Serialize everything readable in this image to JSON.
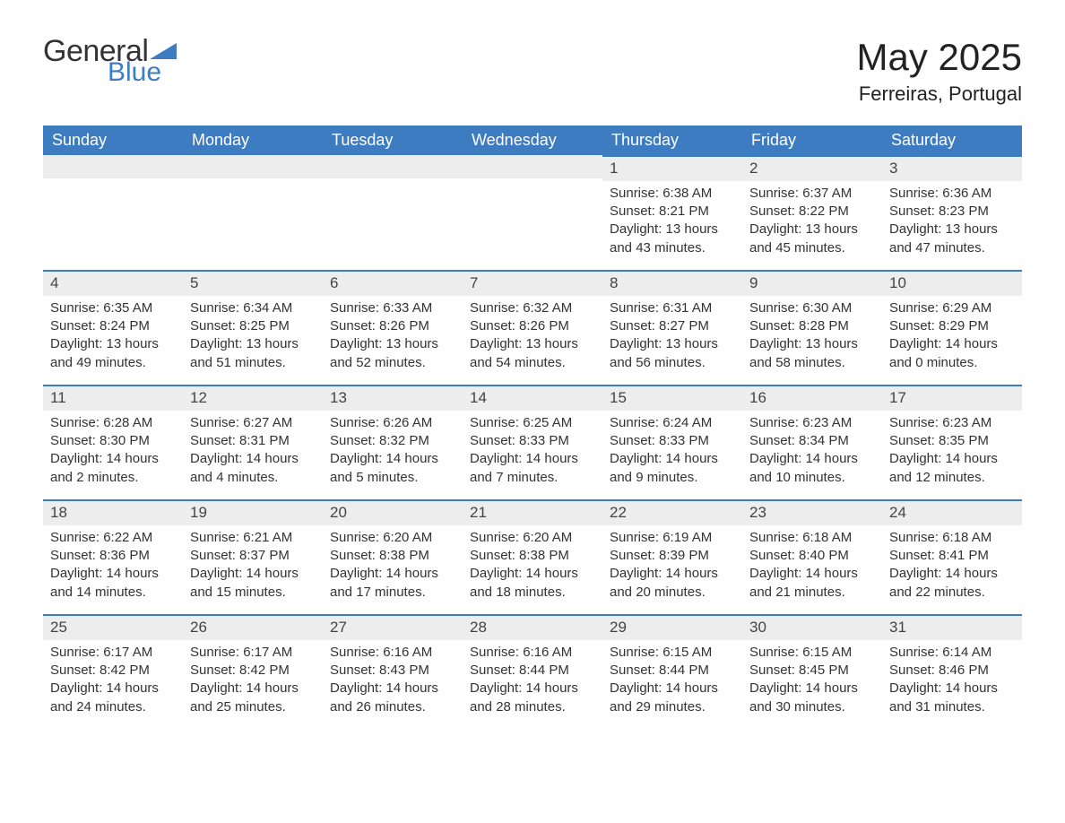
{
  "brand": {
    "general_text": "General",
    "blue_text": "Blue",
    "accent_color": "#3d7cc0"
  },
  "title": {
    "month_year": "May 2025",
    "location": "Ferreiras, Portugal"
  },
  "day_labels": [
    "Sunday",
    "Monday",
    "Tuesday",
    "Wednesday",
    "Thursday",
    "Friday",
    "Saturday"
  ],
  "colors": {
    "header_bg": "#3d7cc0",
    "header_text": "#ffffff",
    "daynum_bg": "#ededed",
    "border_top": "#3d7cc0",
    "text": "#333333",
    "page_bg": "#ffffff"
  },
  "typography": {
    "title_fontsize": 42,
    "location_fontsize": 22,
    "header_fontsize": 18,
    "daynum_fontsize": 17,
    "body_fontsize": 15
  },
  "weeks": [
    [
      {
        "blank": true
      },
      {
        "blank": true
      },
      {
        "blank": true
      },
      {
        "blank": true
      },
      {
        "num": "1",
        "sunrise": "Sunrise: 6:38 AM",
        "sunset": "Sunset: 8:21 PM",
        "dayl1": "Daylight: 13 hours",
        "dayl2": "and 43 minutes."
      },
      {
        "num": "2",
        "sunrise": "Sunrise: 6:37 AM",
        "sunset": "Sunset: 8:22 PM",
        "dayl1": "Daylight: 13 hours",
        "dayl2": "and 45 minutes."
      },
      {
        "num": "3",
        "sunrise": "Sunrise: 6:36 AM",
        "sunset": "Sunset: 8:23 PM",
        "dayl1": "Daylight: 13 hours",
        "dayl2": "and 47 minutes."
      }
    ],
    [
      {
        "num": "4",
        "sunrise": "Sunrise: 6:35 AM",
        "sunset": "Sunset: 8:24 PM",
        "dayl1": "Daylight: 13 hours",
        "dayl2": "and 49 minutes."
      },
      {
        "num": "5",
        "sunrise": "Sunrise: 6:34 AM",
        "sunset": "Sunset: 8:25 PM",
        "dayl1": "Daylight: 13 hours",
        "dayl2": "and 51 minutes."
      },
      {
        "num": "6",
        "sunrise": "Sunrise: 6:33 AM",
        "sunset": "Sunset: 8:26 PM",
        "dayl1": "Daylight: 13 hours",
        "dayl2": "and 52 minutes."
      },
      {
        "num": "7",
        "sunrise": "Sunrise: 6:32 AM",
        "sunset": "Sunset: 8:26 PM",
        "dayl1": "Daylight: 13 hours",
        "dayl2": "and 54 minutes."
      },
      {
        "num": "8",
        "sunrise": "Sunrise: 6:31 AM",
        "sunset": "Sunset: 8:27 PM",
        "dayl1": "Daylight: 13 hours",
        "dayl2": "and 56 minutes."
      },
      {
        "num": "9",
        "sunrise": "Sunrise: 6:30 AM",
        "sunset": "Sunset: 8:28 PM",
        "dayl1": "Daylight: 13 hours",
        "dayl2": "and 58 minutes."
      },
      {
        "num": "10",
        "sunrise": "Sunrise: 6:29 AM",
        "sunset": "Sunset: 8:29 PM",
        "dayl1": "Daylight: 14 hours",
        "dayl2": "and 0 minutes."
      }
    ],
    [
      {
        "num": "11",
        "sunrise": "Sunrise: 6:28 AM",
        "sunset": "Sunset: 8:30 PM",
        "dayl1": "Daylight: 14 hours",
        "dayl2": "and 2 minutes."
      },
      {
        "num": "12",
        "sunrise": "Sunrise: 6:27 AM",
        "sunset": "Sunset: 8:31 PM",
        "dayl1": "Daylight: 14 hours",
        "dayl2": "and 4 minutes."
      },
      {
        "num": "13",
        "sunrise": "Sunrise: 6:26 AM",
        "sunset": "Sunset: 8:32 PM",
        "dayl1": "Daylight: 14 hours",
        "dayl2": "and 5 minutes."
      },
      {
        "num": "14",
        "sunrise": "Sunrise: 6:25 AM",
        "sunset": "Sunset: 8:33 PM",
        "dayl1": "Daylight: 14 hours",
        "dayl2": "and 7 minutes."
      },
      {
        "num": "15",
        "sunrise": "Sunrise: 6:24 AM",
        "sunset": "Sunset: 8:33 PM",
        "dayl1": "Daylight: 14 hours",
        "dayl2": "and 9 minutes."
      },
      {
        "num": "16",
        "sunrise": "Sunrise: 6:23 AM",
        "sunset": "Sunset: 8:34 PM",
        "dayl1": "Daylight: 14 hours",
        "dayl2": "and 10 minutes."
      },
      {
        "num": "17",
        "sunrise": "Sunrise: 6:23 AM",
        "sunset": "Sunset: 8:35 PM",
        "dayl1": "Daylight: 14 hours",
        "dayl2": "and 12 minutes."
      }
    ],
    [
      {
        "num": "18",
        "sunrise": "Sunrise: 6:22 AM",
        "sunset": "Sunset: 8:36 PM",
        "dayl1": "Daylight: 14 hours",
        "dayl2": "and 14 minutes."
      },
      {
        "num": "19",
        "sunrise": "Sunrise: 6:21 AM",
        "sunset": "Sunset: 8:37 PM",
        "dayl1": "Daylight: 14 hours",
        "dayl2": "and 15 minutes."
      },
      {
        "num": "20",
        "sunrise": "Sunrise: 6:20 AM",
        "sunset": "Sunset: 8:38 PM",
        "dayl1": "Daylight: 14 hours",
        "dayl2": "and 17 minutes."
      },
      {
        "num": "21",
        "sunrise": "Sunrise: 6:20 AM",
        "sunset": "Sunset: 8:38 PM",
        "dayl1": "Daylight: 14 hours",
        "dayl2": "and 18 minutes."
      },
      {
        "num": "22",
        "sunrise": "Sunrise: 6:19 AM",
        "sunset": "Sunset: 8:39 PM",
        "dayl1": "Daylight: 14 hours",
        "dayl2": "and 20 minutes."
      },
      {
        "num": "23",
        "sunrise": "Sunrise: 6:18 AM",
        "sunset": "Sunset: 8:40 PM",
        "dayl1": "Daylight: 14 hours",
        "dayl2": "and 21 minutes."
      },
      {
        "num": "24",
        "sunrise": "Sunrise: 6:18 AM",
        "sunset": "Sunset: 8:41 PM",
        "dayl1": "Daylight: 14 hours",
        "dayl2": "and 22 minutes."
      }
    ],
    [
      {
        "num": "25",
        "sunrise": "Sunrise: 6:17 AM",
        "sunset": "Sunset: 8:42 PM",
        "dayl1": "Daylight: 14 hours",
        "dayl2": "and 24 minutes."
      },
      {
        "num": "26",
        "sunrise": "Sunrise: 6:17 AM",
        "sunset": "Sunset: 8:42 PM",
        "dayl1": "Daylight: 14 hours",
        "dayl2": "and 25 minutes."
      },
      {
        "num": "27",
        "sunrise": "Sunrise: 6:16 AM",
        "sunset": "Sunset: 8:43 PM",
        "dayl1": "Daylight: 14 hours",
        "dayl2": "and 26 minutes."
      },
      {
        "num": "28",
        "sunrise": "Sunrise: 6:16 AM",
        "sunset": "Sunset: 8:44 PM",
        "dayl1": "Daylight: 14 hours",
        "dayl2": "and 28 minutes."
      },
      {
        "num": "29",
        "sunrise": "Sunrise: 6:15 AM",
        "sunset": "Sunset: 8:44 PM",
        "dayl1": "Daylight: 14 hours",
        "dayl2": "and 29 minutes."
      },
      {
        "num": "30",
        "sunrise": "Sunrise: 6:15 AM",
        "sunset": "Sunset: 8:45 PM",
        "dayl1": "Daylight: 14 hours",
        "dayl2": "and 30 minutes."
      },
      {
        "num": "31",
        "sunrise": "Sunrise: 6:14 AM",
        "sunset": "Sunset: 8:46 PM",
        "dayl1": "Daylight: 14 hours",
        "dayl2": "and 31 minutes."
      }
    ]
  ]
}
